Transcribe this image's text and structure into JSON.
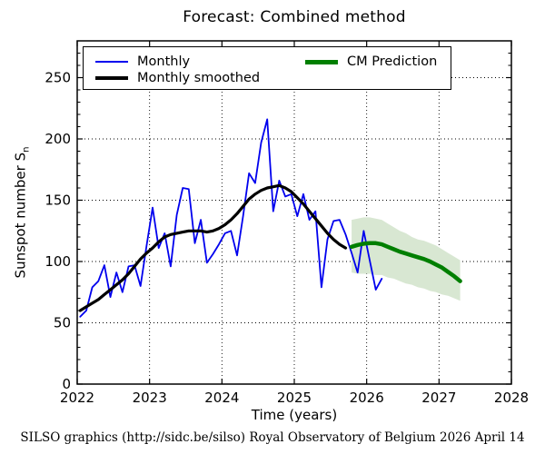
{
  "title": "Forecast: Combined method",
  "footer": "SILSO graphics (http://sidc.be/silso)  Royal Observatory of Belgium  2026 April 14",
  "axes": {
    "x_label": "Time (years)",
    "y_label": "Sunspot number S",
    "y_label_subscript": "n"
  },
  "legend": {
    "monthly": "Monthly",
    "smoothed": "Monthly smoothed",
    "prediction": "CM Prediction"
  },
  "colors": {
    "monthly": "#0000ee",
    "smoothed": "#000000",
    "prediction": "#007f00",
    "band": "#d8e7d2",
    "grid": "#000000",
    "frame": "#000000",
    "background": "#ffffff"
  },
  "chart_data": {
    "type": "line",
    "title": "Forecast: Combined method",
    "xlabel": "Time (years)",
    "ylabel": "Sunspot number Sn",
    "xlim": [
      2022,
      2028
    ],
    "ylim": [
      0,
      280
    ],
    "xticks": [
      2022,
      2023,
      2024,
      2025,
      2026,
      2027,
      2028
    ],
    "yticks": [
      0,
      50,
      100,
      150,
      200,
      250
    ],
    "y_minor_step": 10,
    "grid": "dotted",
    "legend_position": "upper center, 2 columns",
    "series": [
      {
        "name": "Monthly",
        "color_key": "monthly",
        "line_width": 1.8,
        "x_start": 2022.042,
        "x_step": 0.083333,
        "values": [
          55,
          60,
          79,
          84,
          97,
          71,
          91,
          75,
          96,
          97,
          80,
          113,
          144,
          111,
          123,
          96,
          138,
          160,
          159,
          115,
          134,
          99,
          106,
          114,
          123,
          125,
          105,
          137,
          172,
          164,
          197,
          216,
          141,
          166,
          153,
          155,
          137,
          155,
          134,
          141,
          79,
          118,
          133,
          134,
          122,
          107,
          91,
          125,
          101,
          77,
          86
        ]
      },
      {
        "name": "Monthly smoothed",
        "color_key": "smoothed",
        "line_width": 3.2,
        "x_start": 2022.042,
        "x_step": 0.083333,
        "values": [
          60,
          63,
          66,
          69,
          73,
          77,
          81,
          85,
          90,
          96,
          102,
          107,
          111,
          116,
          120,
          122,
          123,
          124,
          125,
          125,
          125,
          124,
          125,
          127,
          130,
          134,
          139,
          145,
          151,
          155,
          158,
          160,
          161,
          162,
          160,
          157,
          152,
          147,
          141,
          135,
          129,
          123,
          118,
          114,
          111
        ]
      },
      {
        "name": "CM Prediction",
        "color_key": "prediction",
        "line_width": 4.5,
        "x_start": 2025.792,
        "x_step": 0.083333,
        "values": [
          112,
          113.5,
          114.5,
          115,
          115,
          114,
          112,
          110,
          108,
          106.5,
          105,
          103.5,
          102,
          100,
          97.5,
          95,
          91.5,
          88,
          84
        ]
      }
    ],
    "band": {
      "name": "CM Prediction uncertainty range",
      "color_key": "band",
      "x_start": 2025.792,
      "x_step": 0.083333,
      "upper": [
        134,
        135,
        136,
        136,
        135,
        134,
        131,
        128,
        125,
        123,
        120,
        118,
        117,
        115,
        113,
        110,
        107,
        104,
        101
      ],
      "lower": [
        91,
        90,
        90,
        90,
        89,
        89,
        87,
        86,
        84,
        82,
        81,
        79,
        78,
        76,
        75,
        73,
        72,
        70,
        68
      ]
    }
  }
}
